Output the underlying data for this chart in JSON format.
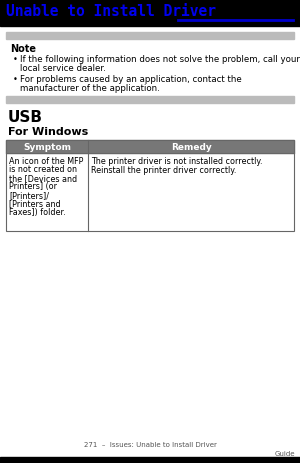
{
  "title": "Unable to Install Driver",
  "title_color": "#0000EE",
  "title_line_color": "#0000CC",
  "bg_color": "#FFFFFF",
  "note_header": "Note",
  "note_bullet1_line1": "If the following information does not solve the problem, call your",
  "note_bullet1_line2": "local service dealer.",
  "note_bullet2_line1": "For problems caused by an application, contact the",
  "note_bullet2_line2": "manufacturer of the application.",
  "note_bar_color": "#BBBBBB",
  "section_usb": "USB",
  "section_windows": "For Windows",
  "table_header_bg": "#777777",
  "table_header_color": "#FFFFFF",
  "table_col1_header": "Symptom",
  "table_col2_header": "Remedy",
  "table_border_color": "#666666",
  "table_row_bg": "#FFFFFF",
  "table_symptom_lines": [
    "An icon of the MFP",
    "is not created on",
    "the [Devices and",
    "Printers] (or",
    "[Printers]/",
    "[Printers and",
    "Faxes]) folder."
  ],
  "table_remedy_lines": [
    "The printer driver is not installed correctly.",
    "Reinstall the printer driver correctly."
  ],
  "footer_text": "271  –  Issues: Unable to Install Driver",
  "footer_right": "Guide",
  "font_family": "DejaVu Sans",
  "font_mono": "monospace"
}
